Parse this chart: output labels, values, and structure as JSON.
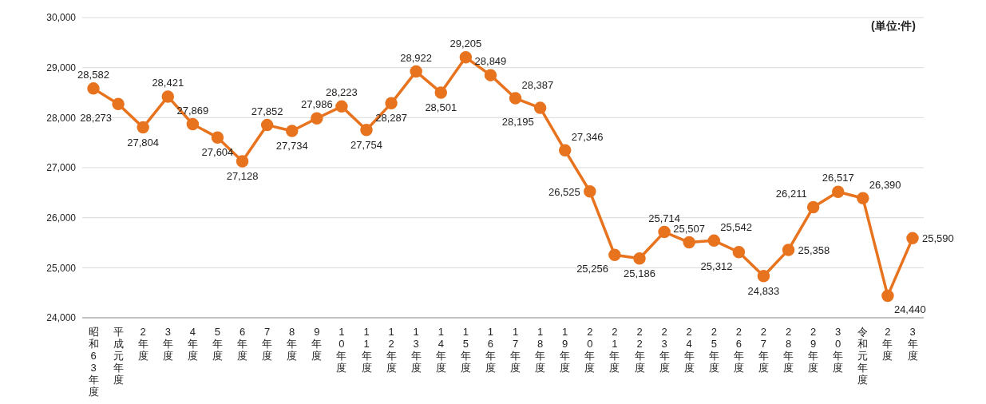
{
  "chart_data": {
    "type": "line",
    "annotations": [
      "(単位:件)"
    ],
    "categories": [
      "昭和63年度",
      "平成元年度",
      "2年度",
      "3年度",
      "4年度",
      "5年度",
      "6年度",
      "7年度",
      "8年度",
      "9年度",
      "10年度",
      "11年度",
      "12年度",
      "13年度",
      "14年度",
      "15年度",
      "16年度",
      "17年度",
      "18年度",
      "19年度",
      "20年度",
      "21年度",
      "22年度",
      "23年度",
      "24年度",
      "25年度",
      "26年度",
      "27年度",
      "28年度",
      "29年度",
      "30年度",
      "令和元年度",
      "2年度",
      "3年度"
    ],
    "series": [
      {
        "color": "#e8731e",
        "values": [
          28582,
          28273,
          27804,
          28421,
          27869,
          27604,
          27128,
          27852,
          27734,
          27986,
          28223,
          27754,
          28287,
          28922,
          28501,
          29205,
          28849,
          28387,
          28195,
          27346,
          26525,
          25256,
          25186,
          25714,
          25507,
          25542,
          25312,
          24833,
          25358,
          26211,
          26517,
          26390,
          24440,
          25590
        ],
        "value_labels": [
          "28,582",
          "28,273",
          "27,804",
          "28,421",
          "27,869",
          "27,604",
          "27,128",
          "27,852",
          "27,734",
          "27,986",
          "28,223",
          "27,754",
          "28,287",
          "28,922",
          "28,501",
          "29,205",
          "28,849",
          "28,387",
          "28,195",
          "27,346",
          "26,525",
          "25,256",
          "25,186",
          "25,714",
          "25,507",
          "25,542",
          "25,312",
          "24,833",
          "25,358",
          "26,211",
          "26,517",
          "26,390",
          "24,440",
          "25,590"
        ]
      }
    ],
    "ylim": [
      24000,
      30000
    ],
    "yticks": [
      {
        "value": 24000,
        "label": "24,000"
      },
      {
        "value": 25000,
        "label": "25,000"
      },
      {
        "value": 26000,
        "label": "26,000"
      },
      {
        "value": 27000,
        "label": "27,000"
      },
      {
        "value": 28000,
        "label": "28,000"
      },
      {
        "value": 29000,
        "label": "29,000"
      },
      {
        "value": 30000,
        "label": "30,000"
      }
    ],
    "grid": "y",
    "marker": "circle",
    "line_style": "solid"
  }
}
